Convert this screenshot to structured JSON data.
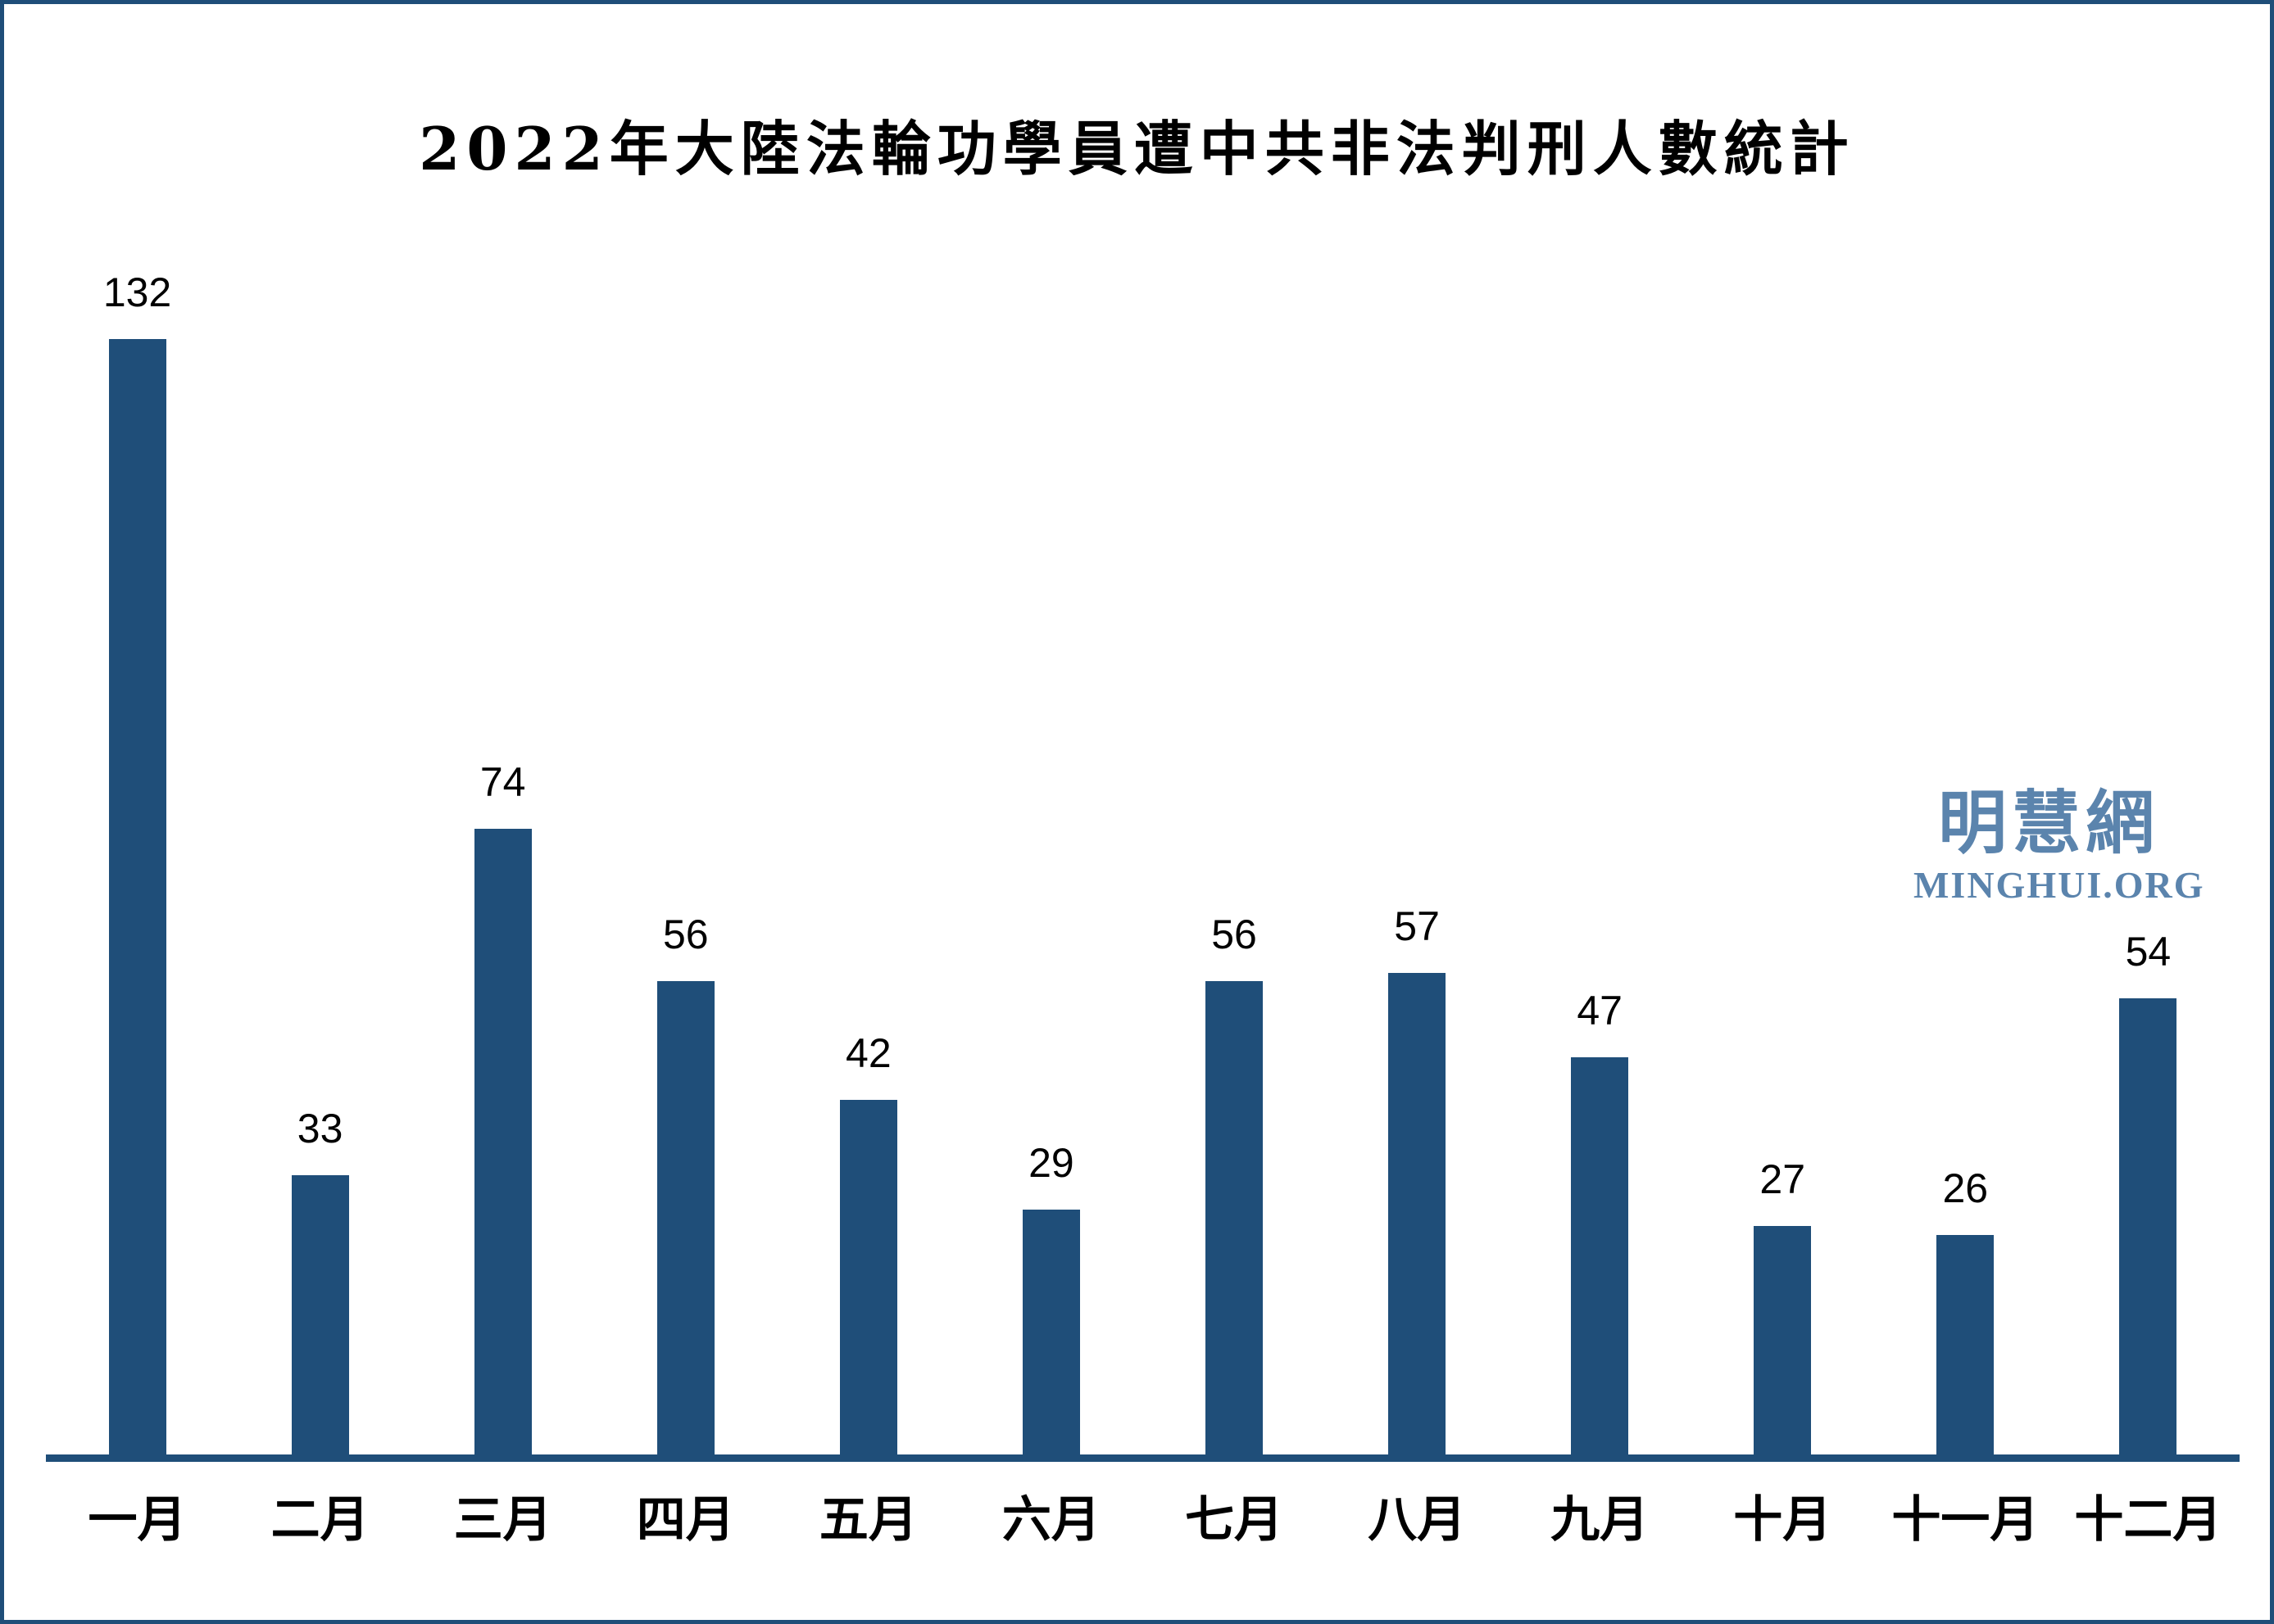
{
  "title": "2022年大陸法輪功學員遭中共非法判刑人數統計",
  "watermark": {
    "cjk": "明慧網",
    "latin": "MINGHUI.ORG"
  },
  "colors": {
    "bar": "#1F4E79",
    "frame_border": "#1F4E79",
    "axis_line": "#1F4E79",
    "title_text": "#000000",
    "value_label_text": "#000000",
    "month_label_text": "#000000",
    "watermark": "#5B84AD",
    "background": "#FFFFFF"
  },
  "chart_data": {
    "type": "bar",
    "title": "2022年大陸法輪功學員遭中共非法判刑人數統計",
    "categories": [
      "一月",
      "二月",
      "三月",
      "四月",
      "五月",
      "六月",
      "七月",
      "八月",
      "九月",
      "十月",
      "十一月",
      "十二月"
    ],
    "values": [
      132,
      33,
      74,
      56,
      42,
      29,
      56,
      57,
      47,
      27,
      26,
      54
    ],
    "xlabel": "",
    "ylabel": "",
    "ylim": [
      0,
      140
    ],
    "grid": false,
    "y_axis_visible": false,
    "value_labels_visible": true,
    "legend": "none"
  }
}
